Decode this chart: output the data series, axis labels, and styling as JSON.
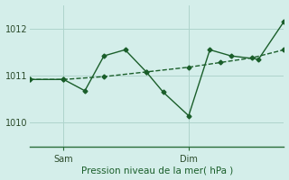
{
  "xlabel": "Pression niveau de la mer( hPa )",
  "bg_color": "#d4eeea",
  "grid_color": "#aed4cc",
  "line_color": "#1a5e2a",
  "axis_color": "#2a6e3a",
  "ylim": [
    1009.5,
    1012.5
  ],
  "yticks": [
    1010,
    1011,
    1012
  ],
  "xlim": [
    0,
    12
  ],
  "sam_x": 1.6,
  "dim_x": 7.5,
  "line1_x": [
    0.0,
    1.6,
    3.5,
    5.5,
    7.5,
    9.0,
    10.5,
    12.0
  ],
  "line1_y": [
    1010.92,
    1010.92,
    1010.98,
    1011.08,
    1011.18,
    1011.28,
    1011.38,
    1011.55
  ],
  "line2_x": [
    0.0,
    1.6,
    2.6,
    3.5,
    4.5,
    5.5,
    6.3,
    7.5,
    8.5,
    9.5,
    10.8,
    12.0
  ],
  "line2_y": [
    1010.92,
    1010.92,
    1010.68,
    1011.42,
    1011.55,
    1011.08,
    1010.65,
    1010.15,
    1011.55,
    1011.42,
    1011.35,
    1012.15
  ],
  "marker": "D",
  "markersize": 2.5,
  "linewidth": 1.0
}
